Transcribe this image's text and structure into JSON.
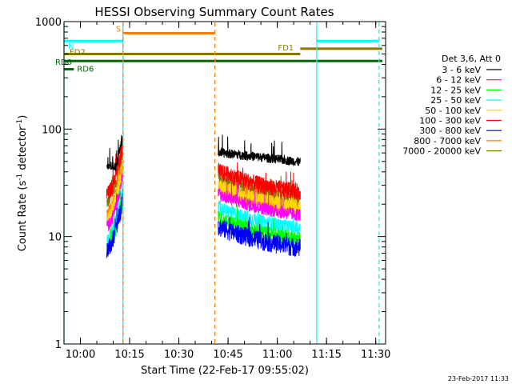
{
  "chart_data": {
    "type": "line",
    "title": "HESSI Observing Summary Count Rates",
    "xlabel": "Start Time (22-Feb-17 09:55:02)",
    "ylabel_main": "Count Rate (s",
    "ylabel_sup1": "-1",
    "ylabel_mid": " detector",
    "ylabel_sup2": "-1",
    "ylabel_end": ")",
    "y_scale": "log",
    "ylim": [
      1,
      1000
    ],
    "xlim": [
      "09:55",
      "11:33"
    ],
    "x_ticks": [
      "10:00",
      "10:15",
      "10:30",
      "10:45",
      "11:00",
      "11:15",
      "11:30"
    ],
    "y_ticks": [
      "1",
      "10",
      "100",
      "1000"
    ],
    "legend_title": "Det 3,6, Att 0",
    "legend_placement": "right",
    "series": [
      {
        "name": "3 - 6 keV",
        "color": "#000000"
      },
      {
        "name": "6 - 12 keV",
        "color": "#ff00ff"
      },
      {
        "name": "12 - 25 keV",
        "color": "#00ff00"
      },
      {
        "name": "25 - 50 keV",
        "color": "#00ffff"
      },
      {
        "name": "50 - 100 keV",
        "color": "#ffd700"
      },
      {
        "name": "100 - 300 keV",
        "color": "#ff0000"
      },
      {
        "name": "300 - 800 keV",
        "color": "#0000ff"
      },
      {
        "name": "800 - 7000 keV",
        "color": "#ff8000"
      },
      {
        "name": "7000 - 20000 keV",
        "color": "#8b7500"
      }
    ],
    "segments": [
      {
        "label": "S",
        "color": "#ff8000",
        "start": "10:13",
        "end": "10:41",
        "y": 780
      },
      {
        "label": "N",
        "color": "#00ffff",
        "start": "09:55",
        "end": "10:13",
        "y": 660
      },
      {
        "label": "",
        "color": "#00ffff",
        "start": "11:12",
        "end": "11:31",
        "y": 660
      },
      {
        "label": "FD1",
        "color": "#8b7500",
        "start": "11:07",
        "end": "11:32",
        "y": 560
      },
      {
        "label": "FD2",
        "color": "#8b7500",
        "start": "09:55",
        "end": "11:07",
        "y": 500
      },
      {
        "label": "RD0",
        "color": "#006400",
        "start": "09:55",
        "end": "11:32",
        "y": 430
      },
      {
        "label": "RD6",
        "color": "#006400",
        "start": "09:55",
        "end": "09:58",
        "y": 360
      }
    ],
    "vlines": [
      {
        "time": "09:55",
        "color": "#00ffff",
        "style": "solid"
      },
      {
        "time": "10:13",
        "color": "#00ffff",
        "style": "solid"
      },
      {
        "time": "10:13",
        "color": "#ff8000",
        "style": "dashed"
      },
      {
        "time": "10:41",
        "color": "#ff8000",
        "style": "dashed"
      },
      {
        "time": "11:12",
        "color": "#00ffff",
        "style": "solid"
      },
      {
        "time": "11:31",
        "color": "#00ffff",
        "style": "dashed"
      }
    ],
    "intervals": [
      {
        "start": "10:08",
        "end": "10:13",
        "start_scale": 0.62,
        "end_scale": 1.9
      },
      {
        "start": "10:42",
        "end": "11:07",
        "start_scale": 1.25,
        "end_scale": 0.72
      }
    ],
    "timestamp": "23-Feb-2017 11:33"
  }
}
